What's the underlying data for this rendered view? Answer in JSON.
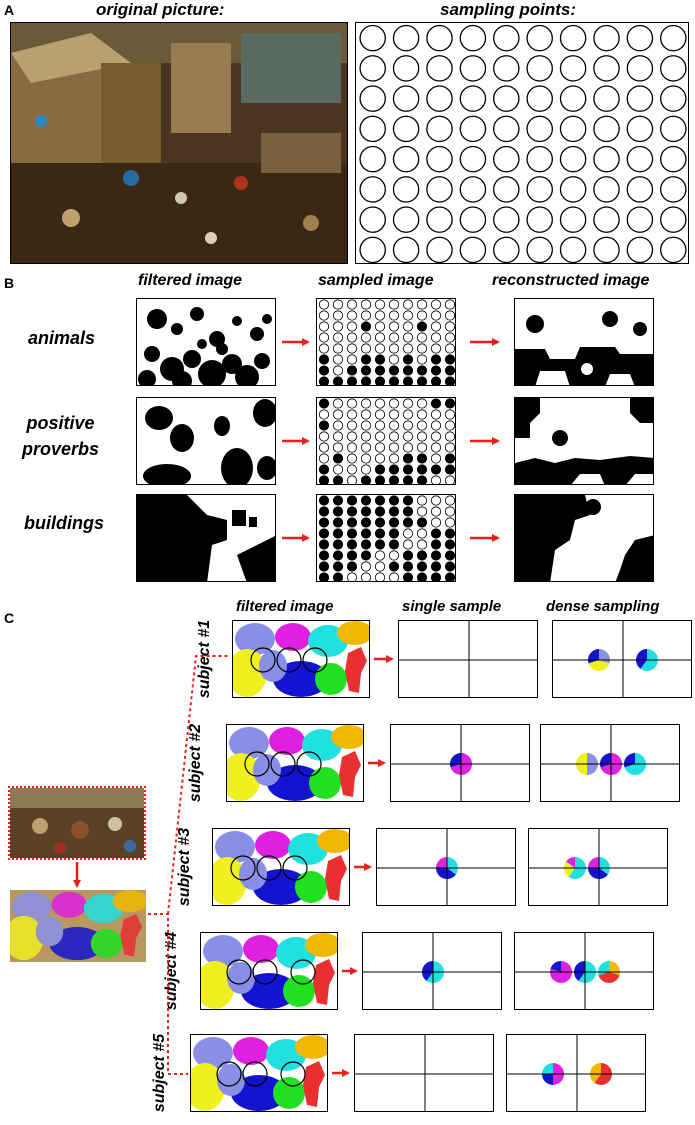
{
  "panels": {
    "a": "A",
    "b": "B",
    "c": "C"
  },
  "panel_a": {
    "original_title": "original  picture:",
    "sampling_title": "sampling  points:"
  },
  "panel_b": {
    "col_filtered": "filtered image",
    "col_sampled": "sampled image",
    "col_reconstructed": "reconstructed  image",
    "rows": [
      {
        "label": "animals"
      },
      {
        "label": "positive\nproverbs"
      },
      {
        "label": "buildings"
      }
    ]
  },
  "panel_c": {
    "col_filtered": "filtered  image",
    "col_single": "single sample",
    "col_dense": "dense  sampling",
    "subjects": [
      "subject #1",
      "subject #2",
      "subject #3",
      "subject #4",
      "subject #5"
    ]
  },
  "colors": {
    "arrow": "#e8201a",
    "lavender": "#8a8fe6",
    "magenta": "#e020e0",
    "cyan": "#20e0e0",
    "gold": "#f0b800",
    "yellow": "#f0f020",
    "blue": "#1414d0",
    "green": "#20e020",
    "red": "#e83030"
  }
}
